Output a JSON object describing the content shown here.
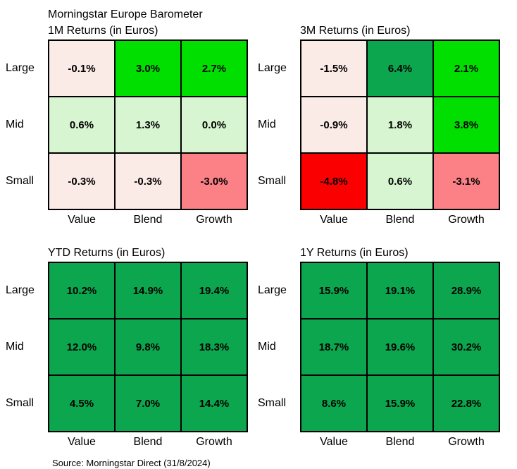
{
  "page": {
    "supertitle": "Morningstar Europe Barometer",
    "source": "Source: Morningstar Direct (31/8/2024)"
  },
  "colors": {
    "bright_green": "#00DF00",
    "strong_green": "#0CA64E",
    "light_green": "#D6F5D0",
    "light_pink": "#FBEBE7",
    "salmon_red": "#FB8186",
    "pure_red": "#FA0000",
    "border": "#000000"
  },
  "chart_data": [
    {
      "type": "heatmap",
      "title": "1M Returns (in Euros)",
      "rows": [
        "Large",
        "Mid",
        "Small"
      ],
      "columns": [
        "Value",
        "Blend",
        "Growth"
      ],
      "values": [
        [
          -0.1,
          3.0,
          2.7
        ],
        [
          0.6,
          1.3,
          0.0
        ],
        [
          -0.3,
          -0.3,
          -3.0
        ]
      ],
      "labels": [
        [
          "-0.1%",
          "3.0%",
          "2.7%"
        ],
        [
          "0.6%",
          "1.3%",
          "0.0%"
        ],
        [
          "-0.3%",
          "-0.3%",
          "-3.0%"
        ]
      ],
      "cell_colors": [
        [
          "light_pink",
          "bright_green",
          "bright_green"
        ],
        [
          "light_green",
          "light_green",
          "light_green"
        ],
        [
          "light_pink",
          "light_pink",
          "salmon_red"
        ]
      ],
      "unit": "%",
      "legend": "none",
      "grid": "on"
    },
    {
      "type": "heatmap",
      "title": "3M Returns (in Euros)",
      "rows": [
        "Large",
        "Mid",
        "Small"
      ],
      "columns": [
        "Value",
        "Blend",
        "Growth"
      ],
      "values": [
        [
          -1.5,
          6.4,
          2.1
        ],
        [
          -0.9,
          1.8,
          3.8
        ],
        [
          -4.8,
          0.6,
          -3.1
        ]
      ],
      "labels": [
        [
          "-1.5%",
          "6.4%",
          "2.1%"
        ],
        [
          "-0.9%",
          "1.8%",
          "3.8%"
        ],
        [
          "-4.8%",
          "0.6%",
          "-3.1%"
        ]
      ],
      "cell_colors": [
        [
          "light_pink",
          "strong_green",
          "bright_green"
        ],
        [
          "light_pink",
          "light_green",
          "bright_green"
        ],
        [
          "pure_red",
          "light_green",
          "salmon_red"
        ]
      ],
      "unit": "%",
      "legend": "none",
      "grid": "on"
    },
    {
      "type": "heatmap",
      "title": "YTD Returns (in Euros)",
      "rows": [
        "Large",
        "Mid",
        "Small"
      ],
      "columns": [
        "Value",
        "Blend",
        "Growth"
      ],
      "values": [
        [
          10.2,
          14.9,
          19.4
        ],
        [
          12.0,
          9.8,
          18.3
        ],
        [
          4.5,
          7.0,
          14.4
        ]
      ],
      "labels": [
        [
          "10.2%",
          "14.9%",
          "19.4%"
        ],
        [
          "12.0%",
          "9.8%",
          "18.3%"
        ],
        [
          "4.5%",
          "7.0%",
          "14.4%"
        ]
      ],
      "cell_colors": [
        [
          "strong_green",
          "strong_green",
          "strong_green"
        ],
        [
          "strong_green",
          "strong_green",
          "strong_green"
        ],
        [
          "strong_green",
          "strong_green",
          "strong_green"
        ]
      ],
      "unit": "%",
      "legend": "none",
      "grid": "on"
    },
    {
      "type": "heatmap",
      "title": "1Y Returns (in Euros)",
      "rows": [
        "Large",
        "Mid",
        "Small"
      ],
      "columns": [
        "Value",
        "Blend",
        "Growth"
      ],
      "values": [
        [
          15.9,
          19.1,
          28.9
        ],
        [
          18.7,
          19.6,
          30.2
        ],
        [
          8.6,
          15.9,
          22.8
        ]
      ],
      "labels": [
        [
          "15.9%",
          "19.1%",
          "28.9%"
        ],
        [
          "18.7%",
          "19.6%",
          "30.2%"
        ],
        [
          "8.6%",
          "15.9%",
          "22.8%"
        ]
      ],
      "cell_colors": [
        [
          "strong_green",
          "strong_green",
          "strong_green"
        ],
        [
          "strong_green",
          "strong_green",
          "strong_green"
        ],
        [
          "strong_green",
          "strong_green",
          "strong_green"
        ]
      ],
      "unit": "%",
      "legend": "none",
      "grid": "on"
    }
  ]
}
